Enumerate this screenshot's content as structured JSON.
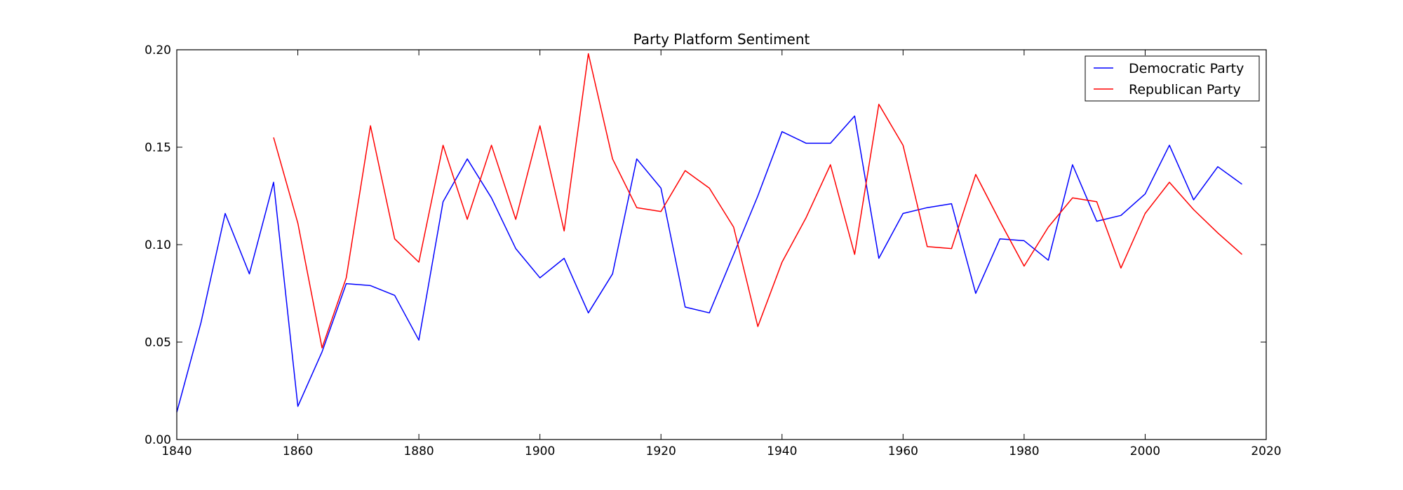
{
  "chart_data": {
    "type": "line",
    "title": "Party Platform Sentiment",
    "xlabel": "",
    "ylabel": "",
    "xlim": [
      1840,
      2020
    ],
    "ylim": [
      0.0,
      0.2
    ],
    "xticks": [
      "1840",
      "1860",
      "1880",
      "1900",
      "1920",
      "1940",
      "1960",
      "1980",
      "2000",
      "2020"
    ],
    "yticks": [
      "0.00",
      "0.05",
      "0.10",
      "0.15",
      "0.20"
    ],
    "grid": false,
    "legend_position": "top-right",
    "series": [
      {
        "name": "Democratic Party",
        "color": "#0000ff",
        "x": [
          1840,
          1844,
          1848,
          1852,
          1856,
          1860,
          1864,
          1868,
          1872,
          1876,
          1880,
          1884,
          1888,
          1892,
          1896,
          1900,
          1904,
          1908,
          1912,
          1916,
          1920,
          1924,
          1928,
          1932,
          1936,
          1940,
          1944,
          1948,
          1952,
          1956,
          1960,
          1964,
          1968,
          1972,
          1976,
          1980,
          1984,
          1988,
          1992,
          1996,
          2000,
          2004,
          2008,
          2012,
          2016
        ],
        "values": [
          0.014,
          0.06,
          0.116,
          0.085,
          0.132,
          0.017,
          0.045,
          0.08,
          0.079,
          0.074,
          0.051,
          0.122,
          0.144,
          0.124,
          0.098,
          0.083,
          0.093,
          0.065,
          0.085,
          0.144,
          0.129,
          0.068,
          0.065,
          0.095,
          0.125,
          0.158,
          0.152,
          0.152,
          0.166,
          0.093,
          0.116,
          0.119,
          0.121,
          0.075,
          0.103,
          0.102,
          0.092,
          0.141,
          0.112,
          0.115,
          0.126,
          0.151,
          0.123,
          0.14,
          0.131
        ]
      },
      {
        "name": "Republican Party",
        "color": "#ff0000",
        "x": [
          1856,
          1860,
          1864,
          1868,
          1872,
          1876,
          1880,
          1884,
          1888,
          1892,
          1896,
          1900,
          1904,
          1908,
          1912,
          1916,
          1920,
          1924,
          1928,
          1932,
          1936,
          1940,
          1944,
          1948,
          1952,
          1956,
          1960,
          1964,
          1968,
          1972,
          1976,
          1980,
          1984,
          1988,
          1992,
          1996,
          2000,
          2004,
          2008,
          2012,
          2016
        ],
        "values": [
          0.155,
          0.111,
          0.047,
          0.083,
          0.161,
          0.103,
          0.091,
          0.151,
          0.113,
          0.151,
          0.113,
          0.161,
          0.107,
          0.198,
          0.144,
          0.119,
          0.117,
          0.138,
          0.129,
          0.109,
          0.058,
          0.091,
          0.114,
          0.141,
          0.095,
          0.172,
          0.151,
          0.099,
          0.098,
          0.136,
          0.112,
          0.089,
          0.109,
          0.124,
          0.122,
          0.088,
          0.116,
          0.132,
          0.118,
          0.106,
          0.095
        ]
      }
    ]
  }
}
